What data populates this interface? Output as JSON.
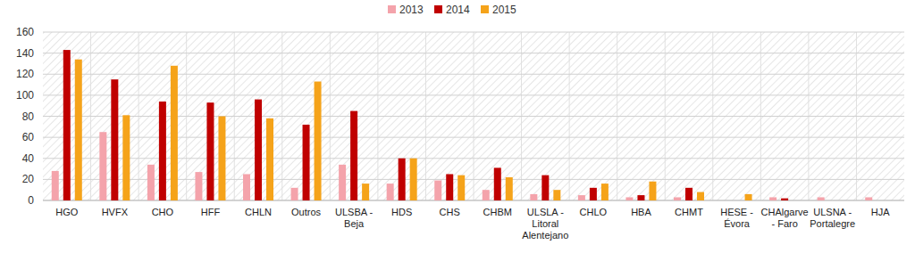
{
  "chart_data": {
    "type": "bar",
    "categories": [
      "HGO",
      "HVFX",
      "CHO",
      "HFF",
      "CHLN",
      "Outros",
      "ULSBA - Beja",
      "HDS",
      "CHS",
      "CHBM",
      "ULSLA - Litoral Alentejano",
      "CHLO",
      "HBA",
      "CHMT",
      "HESE - Évora",
      "CHAlgarve - Faro",
      "ULSNA - Portalegre",
      "HJA"
    ],
    "series": [
      {
        "name": "2013",
        "color": "#f4a3ab",
        "values": [
          28,
          65,
          34,
          27,
          25,
          12,
          34,
          16,
          19,
          10,
          6,
          5,
          3,
          3,
          0,
          3,
          3,
          3
        ]
      },
      {
        "name": "2014",
        "color": "#c00000",
        "values": [
          143,
          115,
          94,
          93,
          96,
          72,
          85,
          40,
          25,
          31,
          24,
          12,
          5,
          12,
          0,
          2,
          0,
          0
        ]
      },
      {
        "name": "2015",
        "color": "#f5a31a",
        "values": [
          134,
          81,
          128,
          80,
          78,
          113,
          16,
          40,
          24,
          22,
          10,
          16,
          18,
          8,
          6,
          0,
          0,
          0
        ]
      }
    ],
    "ylim": [
      0,
      160
    ],
    "yticks": [
      0,
      20,
      40,
      60,
      80,
      100,
      120,
      140,
      160
    ],
    "grid": true,
    "legend": "top"
  }
}
